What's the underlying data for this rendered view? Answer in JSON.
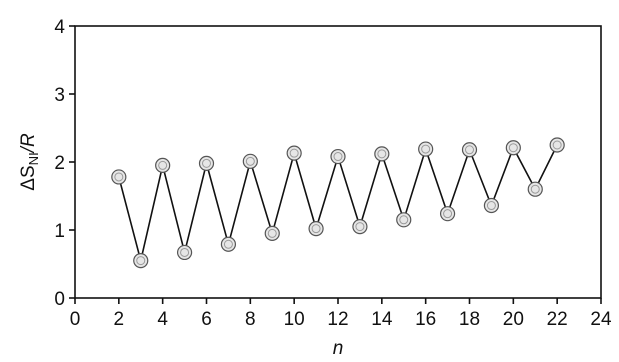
{
  "chart_data": {
    "type": "line",
    "title": "",
    "xlabel": "n",
    "ylabel": {
      "prefix": "ΔS",
      "subscript": "NI",
      "suffix": "/R"
    },
    "xlim": [
      0,
      24
    ],
    "ylim": [
      0,
      4
    ],
    "x_ticks": [
      "0",
      "2",
      "4",
      "6",
      "8",
      "10",
      "12",
      "14",
      "16",
      "18",
      "20",
      "22",
      "24"
    ],
    "y_ticks": [
      "0",
      "1",
      "2",
      "3",
      "4"
    ],
    "grid": false,
    "legend": "none",
    "marker": "open-circle",
    "series": [
      {
        "x": [
          2,
          3,
          4,
          5,
          6,
          7,
          8,
          9,
          10,
          11,
          12,
          13,
          14,
          15,
          16,
          17,
          18,
          19,
          20,
          21,
          22
        ],
        "values": [
          1.78,
          0.55,
          1.95,
          0.67,
          1.98,
          0.79,
          2.01,
          0.95,
          2.13,
          1.02,
          2.08,
          1.05,
          2.12,
          1.15,
          2.19,
          1.24,
          2.18,
          1.36,
          2.21,
          1.6,
          2.25
        ]
      }
    ]
  }
}
